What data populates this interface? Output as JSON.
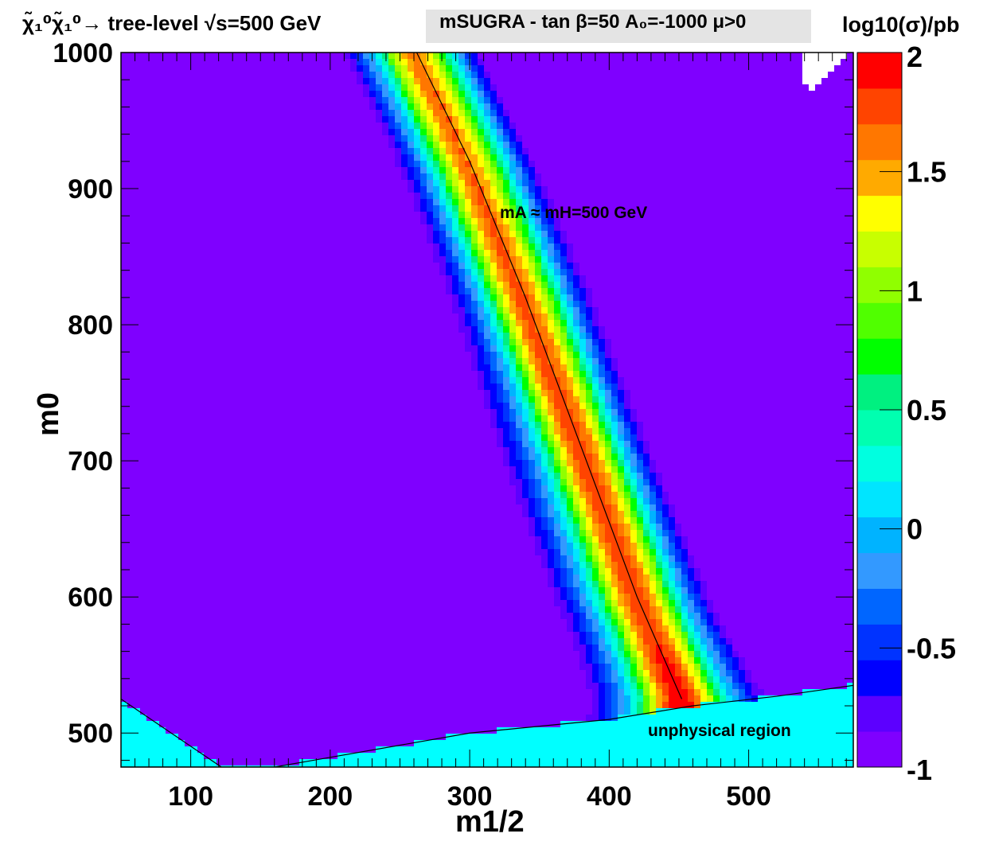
{
  "header": {
    "process": "χ̃₁⁰χ̃₁⁰→ tree-level √s=500 GeV",
    "model": "mSUGRA - tan β=50  A₀=-1000  μ>0"
  },
  "chart_data": {
    "type": "heatmap",
    "title": "χ̃₁⁰χ̃₁⁰→ tree-level √s=500 GeV",
    "xlabel": "m1/2",
    "ylabel": "m0",
    "zlabel": "log10(σ)/pb",
    "xlim": [
      50,
      575
    ],
    "ylim": [
      475,
      1000
    ],
    "zlim": [
      -1,
      2
    ],
    "x_ticks": [
      100,
      200,
      300,
      400,
      500
    ],
    "y_ticks": [
      500,
      600,
      700,
      800,
      900,
      1000
    ],
    "z_ticks": [
      -1,
      -0.5,
      0,
      0.5,
      1,
      1.5,
      2
    ],
    "x_tick_labels": [
      "100",
      "200",
      "300",
      "400",
      "500"
    ],
    "y_tick_labels": [
      "500",
      "600",
      "700",
      "800",
      "900",
      "1000"
    ],
    "z_tick_labels": [
      "-1",
      "-0.5",
      "0",
      "0.5",
      "1",
      "1.5",
      "2"
    ],
    "contour_levels": 20,
    "palette": [
      "#7f00ff",
      "#5c00ff",
      "#0000ff",
      "#0033ff",
      "#0066ff",
      "#3399ff",
      "#00b3ff",
      "#00e5ff",
      "#00ffe0",
      "#00ffb0",
      "#00f080",
      "#00ff00",
      "#50ff00",
      "#90ff00",
      "#c8ff00",
      "#ffff00",
      "#ffaa00",
      "#ff7700",
      "#ff4400",
      "#ff0000"
    ],
    "annotations": [
      {
        "text": "mA ≈ mH=500 GeV",
        "x": 355,
        "y": 880
      },
      {
        "text": "unphysical region",
        "x": 470,
        "y": 500
      }
    ],
    "resonance_line": {
      "label": "mA ≈ mH=500 GeV",
      "x": [
        262,
        300,
        340,
        380,
        420,
        452
      ],
      "y": [
        1000,
        920,
        820,
        710,
        600,
        525
      ]
    },
    "physical_boundary": {
      "x": [
        50,
        160,
        300,
        400,
        460,
        520,
        575
      ],
      "y": [
        475,
        475,
        500,
        510,
        520,
        527,
        535
      ]
    },
    "lower_left_boundary": {
      "x": [
        50,
        122
      ],
      "y": [
        525,
        475
      ]
    }
  }
}
